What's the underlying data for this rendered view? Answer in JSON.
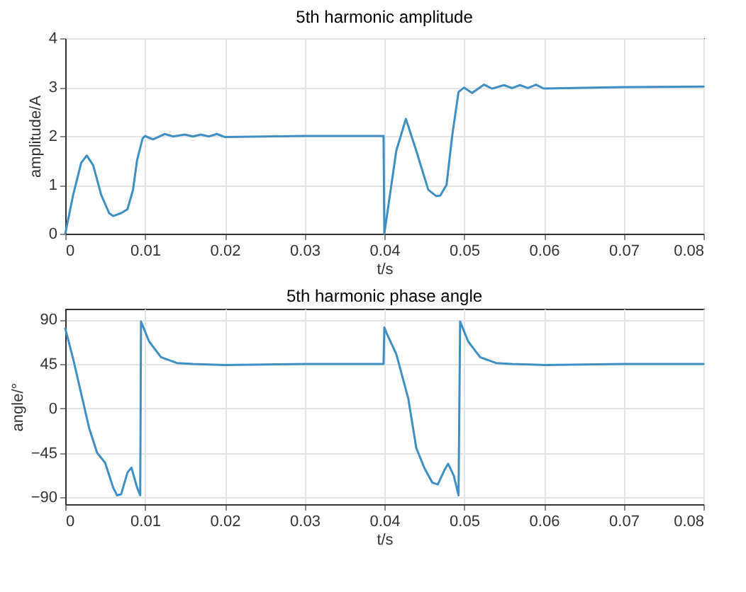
{
  "chart_data": [
    {
      "type": "line",
      "title": "5th harmonic amplitude",
      "xlabel": "t/s",
      "ylabel": "amplitude/A",
      "xlim": [
        0,
        0.08
      ],
      "xticks": [
        0,
        0.01,
        0.02,
        0.03,
        0.04,
        0.05,
        0.06,
        0.07,
        0.08
      ],
      "ylim": [
        0,
        4
      ],
      "yticks": [
        0,
        1,
        2,
        3,
        4
      ],
      "grid": true,
      "line_style": "solid",
      "marker": "none",
      "x": [
        0,
        0.001,
        0.002,
        0.0027,
        0.0035,
        0.0045,
        0.0055,
        0.006,
        0.007,
        0.0078,
        0.0085,
        0.009,
        0.0097,
        0.01,
        0.011,
        0.0125,
        0.0135,
        0.015,
        0.016,
        0.017,
        0.018,
        0.019,
        0.02,
        0.03,
        0.0399,
        0.04,
        0.0415,
        0.0427,
        0.044,
        0.0455,
        0.0465,
        0.047,
        0.0478,
        0.0485,
        0.0493,
        0.05,
        0.051,
        0.0525,
        0.0535,
        0.055,
        0.056,
        0.057,
        0.058,
        0.059,
        0.06,
        0.07,
        0.08
      ],
      "series": [
        {
          "color": "#3d8fc4",
          "values": [
            0,
            0.8,
            1.45,
            1.6,
            1.4,
            0.8,
            0.42,
            0.36,
            0.42,
            0.5,
            0.9,
            1.5,
            1.95,
            2.0,
            1.93,
            2.04,
            1.99,
            2.03,
            1.99,
            2.03,
            1.99,
            2.04,
            1.98,
            2.0,
            2.0,
            0.0,
            1.7,
            2.35,
            1.7,
            0.9,
            0.77,
            0.78,
            1.0,
            2.0,
            2.9,
            2.99,
            2.88,
            3.05,
            2.97,
            3.04,
            2.98,
            3.04,
            2.98,
            3.05,
            2.97,
            3.0,
            3.01
          ]
        }
      ]
    },
    {
      "type": "line",
      "title": "5th harmonic phase angle",
      "xlabel": "t/s",
      "ylabel": "angle/°",
      "xlim": [
        0,
        0.08
      ],
      "xticks": [
        0,
        0.01,
        0.02,
        0.03,
        0.04,
        0.05,
        0.06,
        0.07,
        0.08
      ],
      "ylim": [
        -97,
        101
      ],
      "yticks": [
        -90,
        -45,
        0,
        45,
        90
      ],
      "grid": true,
      "line_style": "solid",
      "marker": "none",
      "x": [
        0,
        0.001,
        0.002,
        0.003,
        0.004,
        0.005,
        0.006,
        0.0065,
        0.007,
        0.0078,
        0.0083,
        0.009,
        0.0094,
        0.0095,
        0.0105,
        0.012,
        0.014,
        0.016,
        0.02,
        0.03,
        0.0399,
        0.04,
        0.0403,
        0.0415,
        0.043,
        0.044,
        0.045,
        0.046,
        0.0467,
        0.0475,
        0.048,
        0.0487,
        0.0493,
        0.0495,
        0.0505,
        0.052,
        0.054,
        0.056,
        0.06,
        0.07,
        0.08
      ],
      "series": [
        {
          "color": "#3d8fc4",
          "values": [
            81,
            50,
            15,
            -20,
            -45,
            -55,
            -80,
            -88,
            -87,
            -65,
            -60,
            -80,
            -88,
            88,
            68,
            52,
            46,
            45,
            44,
            45,
            45,
            82,
            76,
            55,
            10,
            -40,
            -60,
            -75,
            -77,
            -63,
            -56,
            -68,
            -88,
            88,
            68,
            52,
            46,
            45,
            44,
            45,
            45
          ]
        }
      ]
    }
  ]
}
